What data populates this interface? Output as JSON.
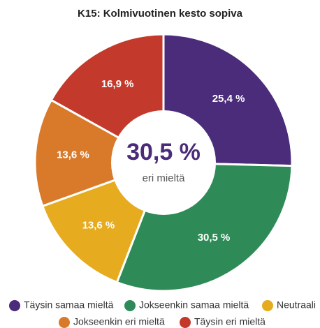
{
  "chart_data": {
    "type": "donut",
    "title": "K15: Kolmivuotinen kesto sopiva",
    "center_label": "30,5 %",
    "center_sublabel": "eri mieltä",
    "categories": [
      "Täysin samaa mieltä",
      "Jokseenkin samaa mieltä",
      "Neutraali",
      "Jokseenkin eri mieltä",
      "Täysin eri mieltä"
    ],
    "values": [
      25.4,
      30.5,
      13.6,
      13.6,
      16.9
    ],
    "value_labels": [
      "25,4 %",
      "30,5 %",
      "13,6 %",
      "13,6 %",
      "16,9 %"
    ],
    "colors": [
      "#4b2c7a",
      "#2e8b57",
      "#e6ab1e",
      "#d97a2b",
      "#c33a2c"
    ]
  }
}
